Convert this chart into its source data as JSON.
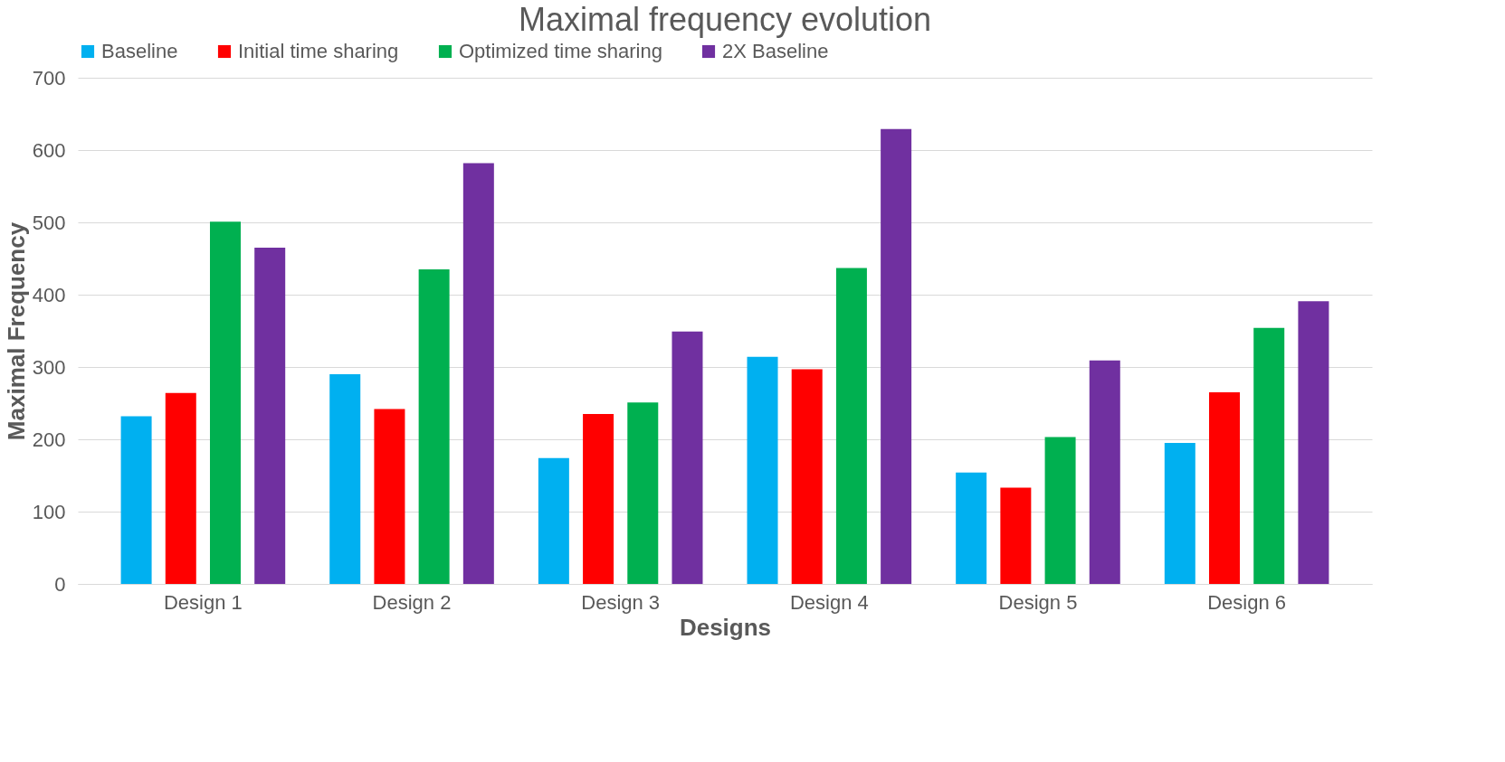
{
  "chart_data": {
    "type": "bar",
    "title": "Maximal frequency evolution",
    "xlabel": "Designs",
    "ylabel": "Maximal Frequency",
    "categories": [
      "Design 1",
      "Design 2",
      "Design 3",
      "Design 4",
      "Design 5",
      "Design 6"
    ],
    "series": [
      {
        "name": "Baseline",
        "color": "#00b0f0",
        "values": [
          232,
          290,
          174,
          314,
          154,
          195
        ]
      },
      {
        "name": "Initial time sharing",
        "color": "#ff0000",
        "values": [
          264,
          242,
          235,
          297,
          133,
          265
        ]
      },
      {
        "name": "Optimized time sharing",
        "color": "#00b050",
        "values": [
          501,
          435,
          251,
          437,
          203,
          354
        ]
      },
      {
        "name": "2X Baseline",
        "color": "#7030a0",
        "values": [
          465,
          582,
          349,
          629,
          309,
          391
        ]
      }
    ],
    "ylim": [
      0,
      700
    ],
    "yticks": [
      0,
      100,
      200,
      300,
      400,
      500,
      600,
      700
    ],
    "grid": "y",
    "legend": "top"
  }
}
